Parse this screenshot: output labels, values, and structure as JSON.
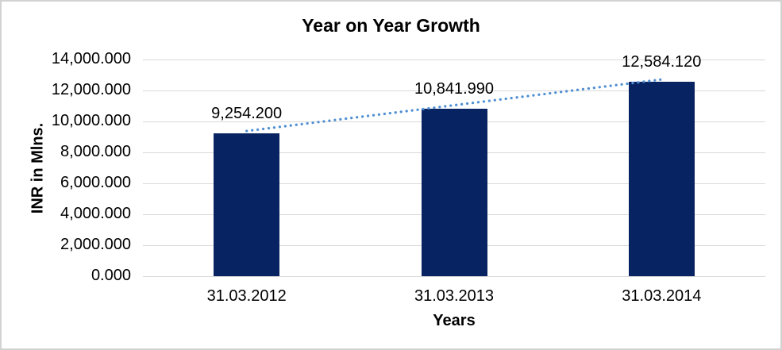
{
  "chart_data": {
    "type": "bar",
    "title": "Year on Year Growth",
    "xlabel": "Years",
    "ylabel": "INR in Mlns.",
    "categories": [
      "31.03.2012",
      "31.03.2013",
      "31.03.2014"
    ],
    "values": [
      9254.2,
      10841.99,
      12584.12
    ],
    "data_labels": [
      "9,254.200",
      "10,841.990",
      "12,584.120"
    ],
    "ylim": [
      0,
      14000
    ],
    "ytick_step": 2000,
    "ytick_labels": [
      "0.000",
      "2,000.000",
      "4,000.000",
      "6,000.000",
      "8,000.000",
      "10,000.000",
      "12,000.000",
      "14,000.000"
    ],
    "grid": true,
    "legend": false,
    "trendline": {
      "type": "linear",
      "style": "dotted"
    },
    "colors": {
      "bar": "#082361",
      "trendline": "#4f8fd3",
      "gridline": "#d9d9d9",
      "text": "#000000",
      "frame": "#d2d2d2"
    }
  }
}
